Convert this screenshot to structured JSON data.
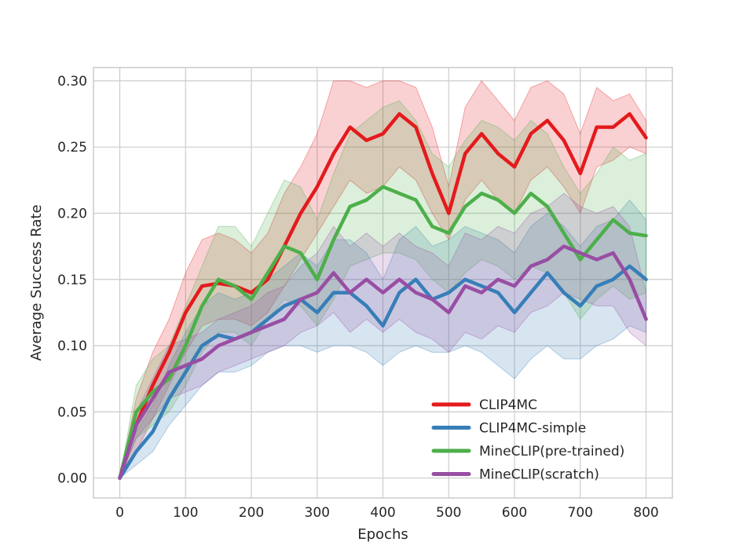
{
  "chart_data": {
    "type": "line",
    "title": "",
    "xlabel": "Epochs",
    "ylabel": "Average Success Rate",
    "xlim": [
      -40,
      840
    ],
    "ylim": [
      -0.015,
      0.31
    ],
    "xticks": [
      0,
      100,
      200,
      300,
      400,
      500,
      600,
      700,
      800
    ],
    "yticks": [
      0.0,
      0.05,
      0.1,
      0.15,
      0.2,
      0.25,
      0.3
    ],
    "ytick_labels": [
      "0.00",
      "0.05",
      "0.10",
      "0.15",
      "0.20",
      "0.25",
      "0.30"
    ],
    "grid": true,
    "legend_position": "lower-right",
    "series": [
      {
        "name": "CLIP4MC",
        "color": "#e41a1c",
        "x": [
          0,
          25,
          50,
          75,
          100,
          125,
          150,
          175,
          200,
          225,
          250,
          275,
          300,
          325,
          350,
          375,
          400,
          425,
          450,
          475,
          500,
          525,
          550,
          575,
          600,
          625,
          650,
          675,
          700,
          725,
          750,
          775,
          800
        ],
        "mean": [
          0.0,
          0.04,
          0.07,
          0.095,
          0.125,
          0.145,
          0.147,
          0.145,
          0.14,
          0.15,
          0.175,
          0.2,
          0.22,
          0.245,
          0.265,
          0.255,
          0.26,
          0.275,
          0.265,
          0.23,
          0.2,
          0.245,
          0.26,
          0.245,
          0.235,
          0.26,
          0.27,
          0.255,
          0.23,
          0.265,
          0.265,
          0.275,
          0.257
        ],
        "lower": [
          0.0,
          0.02,
          0.045,
          0.07,
          0.095,
          0.115,
          0.12,
          0.12,
          0.115,
          0.125,
          0.145,
          0.165,
          0.185,
          0.205,
          0.225,
          0.215,
          0.22,
          0.235,
          0.225,
          0.2,
          0.18,
          0.21,
          0.225,
          0.21,
          0.2,
          0.225,
          0.235,
          0.22,
          0.2,
          0.235,
          0.24,
          0.25,
          0.245
        ],
        "upper": [
          0.0,
          0.06,
          0.095,
          0.12,
          0.155,
          0.18,
          0.185,
          0.18,
          0.17,
          0.185,
          0.215,
          0.235,
          0.26,
          0.3,
          0.3,
          0.295,
          0.3,
          0.3,
          0.295,
          0.265,
          0.22,
          0.28,
          0.3,
          0.285,
          0.27,
          0.295,
          0.3,
          0.29,
          0.26,
          0.295,
          0.285,
          0.29,
          0.27
        ]
      },
      {
        "name": "CLIP4MC-simple",
        "color": "#377eb8",
        "x": [
          0,
          25,
          50,
          75,
          100,
          125,
          150,
          175,
          200,
          225,
          250,
          275,
          300,
          325,
          350,
          375,
          400,
          425,
          450,
          475,
          500,
          525,
          550,
          575,
          600,
          625,
          650,
          675,
          700,
          725,
          750,
          775,
          800
        ],
        "mean": [
          0.0,
          0.02,
          0.035,
          0.06,
          0.08,
          0.1,
          0.108,
          0.105,
          0.11,
          0.12,
          0.13,
          0.135,
          0.125,
          0.14,
          0.14,
          0.13,
          0.115,
          0.14,
          0.15,
          0.135,
          0.14,
          0.15,
          0.145,
          0.14,
          0.125,
          0.14,
          0.155,
          0.14,
          0.13,
          0.145,
          0.15,
          0.16,
          0.15
        ],
        "lower": [
          0.0,
          0.01,
          0.02,
          0.04,
          0.055,
          0.07,
          0.08,
          0.08,
          0.085,
          0.095,
          0.1,
          0.1,
          0.095,
          0.1,
          0.1,
          0.095,
          0.085,
          0.095,
          0.1,
          0.095,
          0.095,
          0.1,
          0.095,
          0.085,
          0.075,
          0.09,
          0.1,
          0.09,
          0.09,
          0.1,
          0.105,
          0.115,
          0.11
        ],
        "upper": [
          0.0,
          0.035,
          0.055,
          0.085,
          0.11,
          0.13,
          0.14,
          0.135,
          0.14,
          0.15,
          0.16,
          0.17,
          0.16,
          0.18,
          0.18,
          0.17,
          0.15,
          0.18,
          0.19,
          0.175,
          0.18,
          0.19,
          0.185,
          0.18,
          0.17,
          0.19,
          0.2,
          0.19,
          0.175,
          0.19,
          0.195,
          0.21,
          0.195
        ]
      },
      {
        "name": "MineCLIP(pre-trained)",
        "color": "#4daf4a",
        "x": [
          0,
          25,
          50,
          75,
          100,
          125,
          150,
          175,
          200,
          225,
          250,
          275,
          300,
          325,
          350,
          375,
          400,
          425,
          450,
          475,
          500,
          525,
          550,
          575,
          600,
          625,
          650,
          675,
          700,
          725,
          750,
          775,
          800
        ],
        "mean": [
          0.0,
          0.05,
          0.065,
          0.075,
          0.1,
          0.13,
          0.15,
          0.145,
          0.135,
          0.155,
          0.175,
          0.17,
          0.15,
          0.18,
          0.205,
          0.21,
          0.22,
          0.215,
          0.21,
          0.19,
          0.185,
          0.205,
          0.215,
          0.21,
          0.2,
          0.215,
          0.205,
          0.185,
          0.165,
          0.18,
          0.195,
          0.185,
          0.183
        ],
        "lower": [
          0.0,
          0.03,
          0.04,
          0.05,
          0.07,
          0.095,
          0.11,
          0.11,
          0.1,
          0.12,
          0.135,
          0.13,
          0.115,
          0.135,
          0.16,
          0.165,
          0.17,
          0.17,
          0.165,
          0.15,
          0.14,
          0.155,
          0.165,
          0.16,
          0.15,
          0.16,
          0.155,
          0.14,
          0.12,
          0.135,
          0.145,
          0.135,
          0.14
        ],
        "upper": [
          0.0,
          0.07,
          0.09,
          0.1,
          0.13,
          0.16,
          0.19,
          0.19,
          0.175,
          0.2,
          0.225,
          0.22,
          0.195,
          0.23,
          0.26,
          0.27,
          0.28,
          0.285,
          0.27,
          0.245,
          0.235,
          0.255,
          0.27,
          0.265,
          0.255,
          0.27,
          0.26,
          0.235,
          0.215,
          0.23,
          0.25,
          0.24,
          0.245
        ]
      },
      {
        "name": "MineCLIP(scratch)",
        "color": "#984ea3",
        "x": [
          0,
          25,
          50,
          75,
          100,
          125,
          150,
          175,
          200,
          225,
          250,
          275,
          300,
          325,
          350,
          375,
          400,
          425,
          450,
          475,
          500,
          525,
          550,
          575,
          600,
          625,
          650,
          675,
          700,
          725,
          750,
          775,
          800
        ],
        "mean": [
          0.0,
          0.04,
          0.06,
          0.08,
          0.085,
          0.09,
          0.1,
          0.105,
          0.11,
          0.115,
          0.12,
          0.135,
          0.14,
          0.155,
          0.14,
          0.15,
          0.14,
          0.15,
          0.14,
          0.135,
          0.125,
          0.145,
          0.14,
          0.15,
          0.145,
          0.16,
          0.165,
          0.175,
          0.17,
          0.165,
          0.17,
          0.15,
          0.12
        ],
        "lower": [
          0.0,
          0.03,
          0.045,
          0.06,
          0.065,
          0.07,
          0.08,
          0.085,
          0.09,
          0.095,
          0.1,
          0.11,
          0.115,
          0.125,
          0.11,
          0.12,
          0.11,
          0.12,
          0.11,
          0.105,
          0.095,
          0.11,
          0.105,
          0.115,
          0.11,
          0.125,
          0.13,
          0.14,
          0.135,
          0.13,
          0.13,
          0.11,
          0.1
        ],
        "upper": [
          0.0,
          0.05,
          0.075,
          0.1,
          0.105,
          0.11,
          0.12,
          0.125,
          0.13,
          0.14,
          0.145,
          0.16,
          0.17,
          0.19,
          0.175,
          0.185,
          0.175,
          0.185,
          0.175,
          0.17,
          0.16,
          0.185,
          0.18,
          0.19,
          0.185,
          0.2,
          0.205,
          0.215,
          0.205,
          0.2,
          0.205,
          0.19,
          0.14
        ]
      }
    ]
  }
}
